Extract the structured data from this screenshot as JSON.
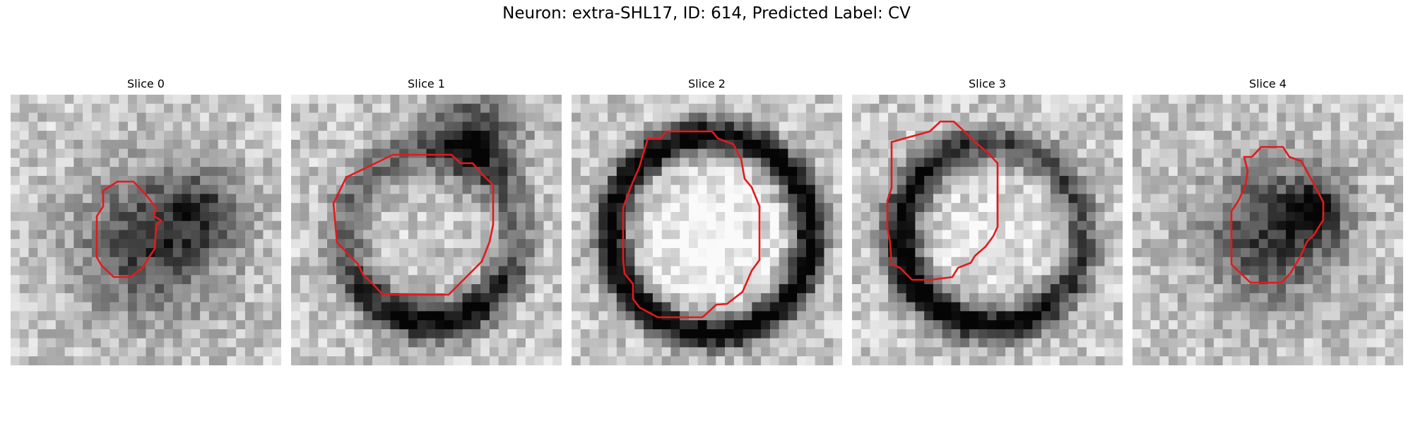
{
  "figure": {
    "title": "Neuron: extra-SHL17, ID: 614, Predicted Label: CV",
    "contour_color": "#e31a1c"
  },
  "panels": [
    {
      "title": "Slice 0",
      "pattern": "spot_right"
    },
    {
      "title": "Slice 1",
      "pattern": "ring_bottom"
    },
    {
      "title": "Slice 2",
      "pattern": "ring_full"
    },
    {
      "title": "Slice 3",
      "pattern": "ring_left"
    },
    {
      "title": "Slice 4",
      "pattern": "spot_dark"
    }
  ]
}
